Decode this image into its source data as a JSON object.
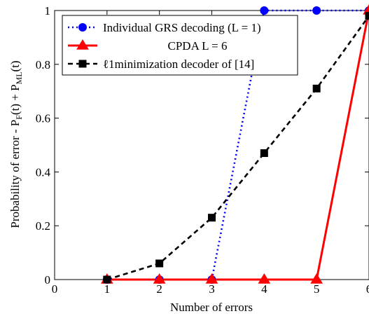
{
  "chart_data": {
    "type": "line",
    "xlabel": "Number of errors",
    "ylabel": "Probability of error - P_F(t) + P_ML(t)",
    "xlim": [
      0,
      6
    ],
    "ylim": [
      0,
      1
    ],
    "x_ticks": [
      "0",
      "1",
      "2",
      "3",
      "4",
      "5",
      "6"
    ],
    "y_ticks": [
      "0",
      "0.2",
      "0.4",
      "0.6",
      "0.8",
      "1"
    ],
    "grid": false,
    "legend_position": "top-left",
    "series": [
      {
        "name": "Individual GRS decoding (L = 1)",
        "color": "#0000ff",
        "marker": "circle",
        "dash": "dotted",
        "x": [
          1,
          2,
          3,
          4,
          5,
          6
        ],
        "y": [
          0,
          0,
          0,
          1,
          1,
          1
        ]
      },
      {
        "name": "CPDA L = 6",
        "color": "#ff0000",
        "marker": "triangle",
        "dash": "solid",
        "x": [
          1,
          2,
          3,
          4,
          5,
          6
        ],
        "y": [
          0,
          0,
          0,
          0,
          0,
          1
        ]
      },
      {
        "name": "ℓ1minimization decoder of [14]",
        "color": "#000000",
        "marker": "square",
        "dash": "dashed",
        "x": [
          1,
          2,
          3,
          4,
          5,
          6
        ],
        "y": [
          0,
          0.06,
          0.23,
          0.47,
          0.71,
          0.98
        ]
      }
    ]
  }
}
